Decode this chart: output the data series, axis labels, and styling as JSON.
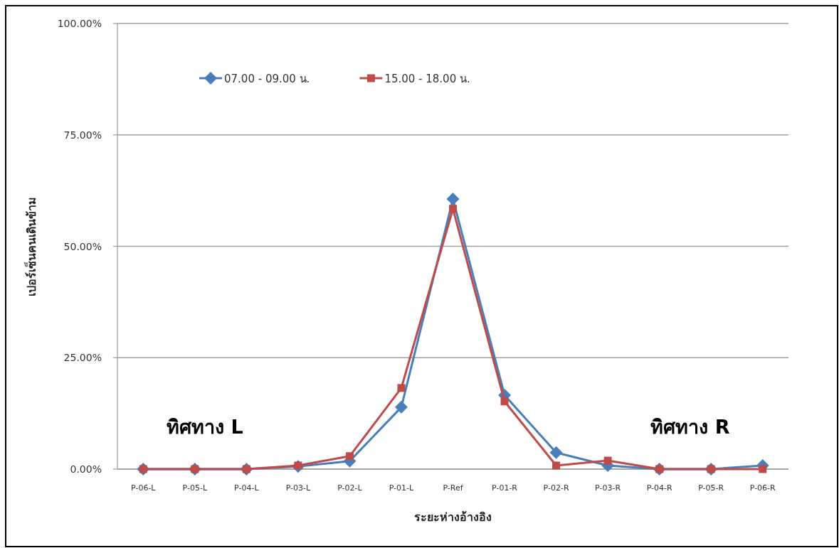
{
  "chart_data": {
    "type": "line",
    "categories": [
      "P-06-L",
      "P-05-L",
      "P-04-L",
      "P-03-L",
      "P-02-L",
      "P-01-L",
      "P-Ref",
      "P-01-R",
      "P-02-R",
      "P-03-R",
      "P-04-R",
      "P-05-R",
      "P-06-R"
    ],
    "series": [
      {
        "name": "07.00 - 09.00 น.",
        "color": "#4a7ebb",
        "marker": "diamond",
        "values": [
          0,
          0,
          0,
          0.6,
          1.8,
          13.9,
          60.6,
          16.6,
          3.7,
          0.8,
          0,
          0,
          0.8
        ]
      },
      {
        "name": "15.00 - 18.00 น.",
        "color": "#be4b48",
        "marker": "square",
        "values": [
          0,
          0,
          0,
          0.8,
          2.9,
          18.2,
          58.4,
          15.2,
          0.8,
          1.9,
          0,
          0,
          0
        ]
      }
    ],
    "xlabel": "ระยะห่างอ้างอิง",
    "ylabel": "เปอร์เซ็นคนเดินข้าม",
    "ylim": [
      0,
      100
    ],
    "yticks": [
      {
        "value": 0,
        "label": "0.00%"
      },
      {
        "value": 25,
        "label": "25.00%"
      },
      {
        "value": 50,
        "label": "50.00%"
      },
      {
        "value": 75,
        "label": "75.00%"
      },
      {
        "value": 100,
        "label": "100.00%"
      }
    ],
    "grid": "y",
    "legend": "top",
    "annotations": [
      "ทิศทาง L",
      "ทิศทาง R"
    ]
  }
}
